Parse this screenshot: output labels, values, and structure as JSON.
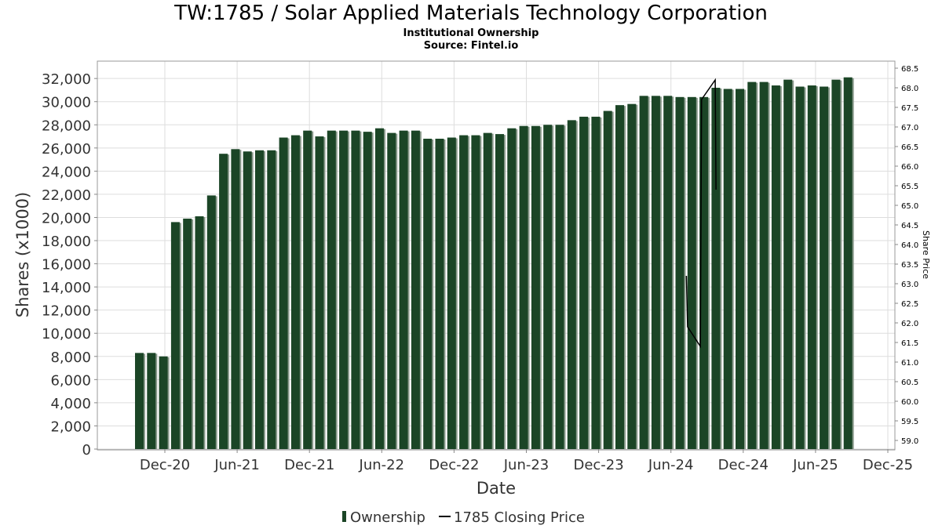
{
  "chart_data": {
    "type": "bar",
    "title": "TW:1785 / Solar Applied Materials Technology Corporation",
    "subtitle": "Institutional Ownership",
    "source": "Source: Fintel.io",
    "xlabel": "Date",
    "ylabel": "Shares (x1000)",
    "y2label": "Share Price",
    "ylim": [
      0,
      33500
    ],
    "y2lim": [
      58.78,
      68.68
    ],
    "grid": true,
    "legend_position": "bottom",
    "colors": {
      "bars": "#1b4526",
      "bar_shadow": "#8a9a8c",
      "price_line": "#000000",
      "grid": "#dddddd"
    },
    "x_ticks": [
      "Dec-20",
      "Jun-21",
      "Dec-21",
      "Jun-22",
      "Dec-22",
      "Jun-23",
      "Dec-23",
      "Jun-24",
      "Dec-24",
      "Jun-25",
      "Dec-25"
    ],
    "y_ticks": [
      "0",
      "2,000",
      "4,000",
      "6,000",
      "8,000",
      "10,000",
      "12,000",
      "14,000",
      "16,000",
      "18,000",
      "20,000",
      "22,000",
      "24,000",
      "26,000",
      "28,000",
      "30,000",
      "32,000"
    ],
    "y2_ticks": [
      "59.0",
      "59.5",
      "60.0",
      "60.5",
      "61.0",
      "61.5",
      "62.0",
      "62.5",
      "63.0",
      "63.5",
      "64.0",
      "64.5",
      "65.0",
      "65.5",
      "66.0",
      "66.5",
      "67.0",
      "67.5",
      "68.0",
      "68.5"
    ],
    "series": [
      {
        "name": "Ownership",
        "type": "bar",
        "values": [
          8300,
          8300,
          8000,
          19600,
          19900,
          20100,
          21900,
          25500,
          25900,
          25700,
          25800,
          25800,
          26900,
          27100,
          27500,
          27000,
          27500,
          27500,
          27500,
          27400,
          27700,
          27300,
          27500,
          27500,
          26800,
          26800,
          26900,
          27100,
          27100,
          27300,
          27200,
          27700,
          27900,
          27900,
          28000,
          28000,
          28400,
          28700,
          28700,
          29200,
          29700,
          29800,
          30500,
          30500,
          30500,
          30400,
          30400,
          30400,
          31200,
          31100,
          31100,
          31700,
          31700,
          31400,
          31900,
          31300,
          31400,
          31300,
          31900,
          32100
        ]
      },
      {
        "name": "1785 Closing Price",
        "type": "line",
        "x": [
          "2024-08",
          "2024-08",
          "2024-09",
          "2024-09",
          "2024-10",
          "2024-10"
        ],
        "values": [
          63.2,
          61.9,
          61.4,
          67.7,
          68.2,
          65.4
        ]
      }
    ]
  }
}
